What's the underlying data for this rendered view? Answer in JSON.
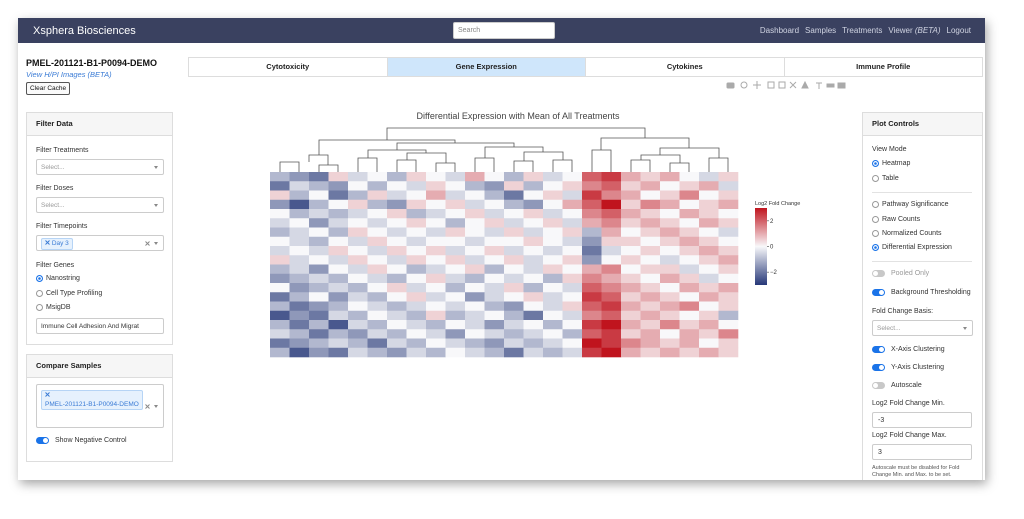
{
  "header": {
    "brand": "Xsphera Biosciences",
    "search_placeholder": "Search",
    "nav": [
      "Dashboard",
      "Samples",
      "Treatments",
      "Viewer",
      "Logout"
    ],
    "viewer_badge": "(BETA)"
  },
  "sample": {
    "title": "PMEL-201121-B1-P0094-DEMO",
    "link": "View H/PI Images (BETA)",
    "button": "Clear Cache"
  },
  "tabs": {
    "items": [
      "Cytotoxicity",
      "Gene Expression",
      "Cytokines",
      "Immune Profile"
    ],
    "active": 1
  },
  "filter": {
    "title": "Filter Data",
    "treatments": {
      "label": "Filter Treatments",
      "placeholder": "Select..."
    },
    "doses": {
      "label": "Filter Doses",
      "placeholder": "Select..."
    },
    "timepoints": {
      "label": "Filter Timepoints",
      "tags": [
        "Day 3"
      ]
    },
    "genes": {
      "label": "Filter Genes",
      "options": [
        {
          "label": "Nanostring",
          "selected": true
        },
        {
          "label": "Cell Type Profiling",
          "selected": false
        },
        {
          "label": "MsigDB",
          "selected": false
        }
      ],
      "select_value": "Immune Cell Adhesion And Migrat"
    }
  },
  "compare": {
    "title": "Compare Samples",
    "tags": [
      "PMEL-201121-B1-P0094-DEMO"
    ],
    "negative_control": {
      "label": "Show Negative Control",
      "on": true
    }
  },
  "heatmap": {
    "title": "Differential Expression with Mean of All Treatments",
    "colorbar_title": "Log2 Fold Change",
    "zlim": [
      -3,
      3
    ],
    "colorbar_ticks": [
      2,
      0,
      {
        "value": -2,
        "label": "−2"
      }
    ],
    "values": [
      [
        -1,
        -1.5,
        -2,
        0.5,
        -0.5,
        0,
        -1,
        0.5,
        0,
        -0.5,
        1,
        0,
        -1,
        0.5,
        -0.5,
        0,
        2,
        2.5,
        1,
        0.5,
        1,
        0,
        -0.5,
        0.5
      ],
      [
        -2,
        -0.5,
        -1,
        -1.5,
        0,
        -1,
        0,
        -0.5,
        0.5,
        0,
        -1,
        -1.5,
        0.5,
        -1,
        0,
        0.5,
        1.5,
        2,
        0.5,
        1,
        0,
        0.5,
        1,
        -0.5
      ],
      [
        0.5,
        -1,
        0,
        -2,
        -1,
        0.5,
        -0.5,
        0,
        1,
        -0.5,
        0,
        -1,
        -2,
        0,
        0.5,
        -0.5,
        2.5,
        1.5,
        1,
        0,
        0.5,
        1.5,
        0,
        0.5
      ],
      [
        -1.5,
        -2.5,
        -1,
        0,
        0.5,
        -1,
        -1.5,
        0.5,
        0,
        0.5,
        -0.5,
        0,
        -1,
        -1.5,
        0,
        1,
        2,
        3,
        0.5,
        1.5,
        1,
        0,
        0.5,
        1
      ],
      [
        0,
        -1,
        -0.5,
        -1,
        -0.5,
        0,
        0.5,
        -1,
        -0.5,
        0,
        0.5,
        -0.5,
        0,
        0.5,
        -0.5,
        0,
        1.5,
        2,
        1,
        0.5,
        0,
        1,
        0.5,
        0
      ],
      [
        -0.5,
        0,
        -1.5,
        -0.5,
        0,
        -0.5,
        0,
        0.5,
        0,
        -1,
        0,
        0.5,
        -0.5,
        0,
        0.5,
        -0.5,
        1,
        1.5,
        0.5,
        1,
        0.5,
        0,
        1,
        0.5
      ],
      [
        -1,
        -0.5,
        0,
        -1,
        0.5,
        0,
        -0.5,
        0,
        -0.5,
        0.5,
        0,
        -0.5,
        0.5,
        -0.5,
        0,
        0.5,
        -1,
        1,
        0,
        0.5,
        1,
        0.5,
        0,
        -0.5
      ],
      [
        0,
        -0.5,
        -1,
        0,
        -0.5,
        0.5,
        0,
        -0.5,
        0,
        0,
        -0.5,
        0,
        0,
        0.5,
        0,
        -0.5,
        -1.5,
        0.5,
        0.5,
        0,
        0.5,
        1,
        0.5,
        0
      ],
      [
        -0.5,
        0,
        -0.5,
        0.5,
        0,
        -0.5,
        0.5,
        0,
        0.5,
        -0.5,
        0,
        0.5,
        -0.5,
        0,
        -0.5,
        0,
        -2,
        -0.5,
        0,
        0.5,
        0,
        0.5,
        1,
        0.5
      ],
      [
        0.5,
        -0.5,
        0,
        -0.5,
        0.5,
        0,
        -0.5,
        0.5,
        0,
        0.5,
        -0.5,
        0,
        0.5,
        -0.5,
        0,
        0.5,
        -1.5,
        0,
        0.5,
        0,
        -0.5,
        0,
        0.5,
        1
      ],
      [
        -1,
        -0.5,
        -1.5,
        0,
        -0.5,
        0.5,
        0,
        -1,
        -0.5,
        0,
        0.5,
        -1,
        0,
        -0.5,
        0.5,
        0,
        1,
        1.5,
        0,
        0.5,
        0.5,
        -0.5,
        0,
        0.5
      ],
      [
        -1.5,
        -1,
        -0.5,
        -1,
        0,
        -0.5,
        -1,
        0,
        0.5,
        -0.5,
        -1,
        0,
        -0.5,
        0,
        -1,
        0.5,
        1.5,
        1,
        0.5,
        0,
        1,
        0.5,
        -0.5,
        0
      ],
      [
        0,
        -1.5,
        -1,
        -0.5,
        -1,
        0,
        0.5,
        -0.5,
        0,
        -1,
        0,
        -0.5,
        0.5,
        -1,
        0,
        -0.5,
        2,
        1.5,
        1,
        0.5,
        0,
        1,
        0.5,
        1
      ],
      [
        -2,
        -1,
        0,
        -1.5,
        -0.5,
        -1,
        0,
        0.5,
        -0.5,
        0,
        -1.5,
        -0.5,
        0,
        0.5,
        -0.5,
        0,
        2.5,
        2,
        0.5,
        1,
        0.5,
        0,
        1,
        0.5
      ],
      [
        -1,
        -2,
        -1.5,
        -1,
        0,
        -0.5,
        -1,
        -0.5,
        0,
        -0.5,
        0,
        -1,
        -1.5,
        0,
        -0.5,
        0.5,
        2,
        2.5,
        1,
        0.5,
        1,
        1.5,
        0,
        0.5
      ],
      [
        -2.5,
        -1.5,
        -2,
        -0.5,
        -1,
        0,
        -0.5,
        -1,
        0.5,
        -1,
        -0.5,
        0,
        -1,
        -2,
        0,
        -0.5,
        1.5,
        2,
        0.5,
        1,
        0.5,
        0,
        0.5,
        -1
      ],
      [
        -1,
        -2,
        -1,
        -2.5,
        -0.5,
        -1,
        0,
        -0.5,
        -1,
        0,
        -0.5,
        -1.5,
        -0.5,
        0,
        -1,
        0,
        2.5,
        3,
        1,
        0.5,
        1.5,
        0.5,
        1,
        0
      ],
      [
        -0.5,
        -1,
        -2,
        -1,
        -1.5,
        -0.5,
        -1,
        0,
        -0.5,
        -1.5,
        0,
        -0.5,
        -1,
        -0.5,
        0,
        -1,
        2,
        2.5,
        0.5,
        1,
        0,
        1,
        0.5,
        1.5
      ],
      [
        -2,
        -1.5,
        -1,
        -0.5,
        -1,
        -2,
        -0.5,
        -1,
        0,
        -0.5,
        -1,
        -1.5,
        -0.5,
        -1,
        -0.5,
        0,
        3,
        2.5,
        1.5,
        1,
        0.5,
        1,
        0,
        0.5
      ],
      [
        -1,
        -2.5,
        -1.5,
        -2,
        -0.5,
        -1,
        -1.5,
        -0.5,
        -1,
        0,
        -0.5,
        -1,
        -2,
        -0.5,
        -1,
        -0.5,
        2.5,
        3,
        1,
        0.5,
        1,
        0.5,
        1,
        0.5
      ]
    ]
  },
  "plot_controls": {
    "title": "Plot Controls",
    "view_mode": {
      "label": "View Mode",
      "options": [
        {
          "label": "Heatmap",
          "selected": true
        },
        {
          "label": "Table",
          "selected": false
        }
      ]
    },
    "data_type": [
      {
        "label": "Pathway Significance",
        "selected": false
      },
      {
        "label": "Raw Counts",
        "selected": false
      },
      {
        "label": "Normalized Counts",
        "selected": false
      },
      {
        "label": "Differential Expression",
        "selected": true
      }
    ],
    "pooled_only": {
      "label": "Pooled Only",
      "on": false,
      "disabled": true
    },
    "background_thresholding": {
      "label": "Background Thresholding",
      "on": true
    },
    "fold_change_basis": {
      "label": "Fold Change Basis:",
      "placeholder": "Select..."
    },
    "x_clustering": {
      "label": "X-Axis Clustering",
      "on": true
    },
    "y_clustering": {
      "label": "Y-Axis Clustering",
      "on": true
    },
    "autoscale": {
      "label": "Autoscale",
      "on": false
    },
    "min": {
      "label": "Log2 Fold Change Min.",
      "value": "-3"
    },
    "max": {
      "label": "Log2 Fold Change Max.",
      "value": "3"
    },
    "note": "Autoscale must be disabled for Fold Change Min. and Max. to be set."
  }
}
